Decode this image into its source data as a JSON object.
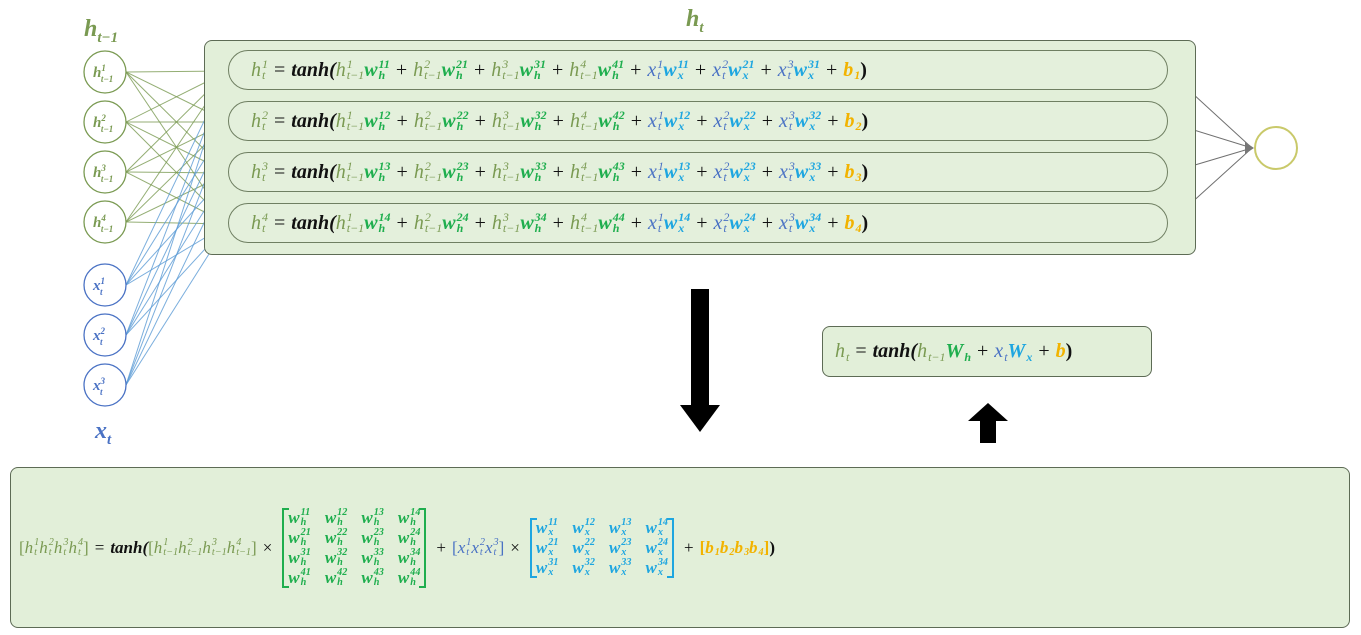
{
  "labels": {
    "h_prev": {
      "base": "h",
      "sub": "t−1"
    },
    "h_t": {
      "base": "h",
      "sub": "t"
    },
    "x_t": {
      "base": "x",
      "sub": "t"
    }
  },
  "colors": {
    "h": "#7a9a52",
    "w_h": "#1fae4e",
    "x": "#4a72c4",
    "w_x": "#1ea6e0",
    "b": "#f2b300",
    "box_fill": "#e2efd9",
    "output_node": "#c9c96a"
  },
  "nodes": {
    "h_prev": [
      [
        "h",
        "1",
        "t−1"
      ],
      [
        "h",
        "2",
        "t−1"
      ],
      [
        "h",
        "3",
        "t−1"
      ],
      [
        "h",
        "4",
        "t−1"
      ]
    ],
    "x": [
      [
        "x",
        "1",
        "t"
      ],
      [
        "x",
        "2",
        "t"
      ],
      [
        "x",
        "3",
        "t"
      ]
    ]
  },
  "rows": [
    [
      [
        "h",
        "1",
        "t",
        "h"
      ],
      [
        "="
      ],
      [
        "tanh(",
        "",
        "",
        "fn"
      ],
      [
        "h",
        "1",
        "t−1",
        "h"
      ],
      [
        "w",
        "11",
        "h",
        "wh"
      ],
      [
        "+"
      ],
      [
        "h",
        "2",
        "t−1",
        "h"
      ],
      [
        "w",
        "21",
        "h",
        "wh"
      ],
      [
        "+"
      ],
      [
        "h",
        "3",
        "t−1",
        "h"
      ],
      [
        "w",
        "31",
        "h",
        "wh"
      ],
      [
        "+"
      ],
      [
        "h",
        "4",
        "t−1",
        "h"
      ],
      [
        "w",
        "41",
        "h",
        "wh"
      ],
      [
        "+"
      ],
      [
        "x",
        "1",
        "t",
        "x"
      ],
      [
        "w",
        "11",
        "x",
        "wx"
      ],
      [
        "+"
      ],
      [
        "x",
        "2",
        "t",
        "x"
      ],
      [
        "w",
        "21",
        "x",
        "wx"
      ],
      [
        "+"
      ],
      [
        "x",
        "3",
        "t",
        "x"
      ],
      [
        "w",
        "31",
        "x",
        "wx"
      ],
      [
        "+"
      ],
      [
        "b",
        "",
        "1",
        "b"
      ],
      [
        ")",
        "",
        "",
        "fn"
      ]
    ],
    [
      [
        "h",
        "2",
        "t",
        "h"
      ],
      [
        "="
      ],
      [
        "tanh(",
        "",
        "",
        "fn"
      ],
      [
        "h",
        "1",
        "t−1",
        "h"
      ],
      [
        "w",
        "12",
        "h",
        "wh"
      ],
      [
        "+"
      ],
      [
        "h",
        "2",
        "t−1",
        "h"
      ],
      [
        "w",
        "22",
        "h",
        "wh"
      ],
      [
        "+"
      ],
      [
        "h",
        "3",
        "t−1",
        "h"
      ],
      [
        "w",
        "32",
        "h",
        "wh"
      ],
      [
        "+"
      ],
      [
        "h",
        "4",
        "t−1",
        "h"
      ],
      [
        "w",
        "42",
        "h",
        "wh"
      ],
      [
        "+"
      ],
      [
        "x",
        "1",
        "t",
        "x"
      ],
      [
        "w",
        "12",
        "x",
        "wx"
      ],
      [
        "+"
      ],
      [
        "x",
        "2",
        "t",
        "x"
      ],
      [
        "w",
        "22",
        "x",
        "wx"
      ],
      [
        "+"
      ],
      [
        "x",
        "3",
        "t",
        "x"
      ],
      [
        "w",
        "32",
        "x",
        "wx"
      ],
      [
        "+"
      ],
      [
        "b",
        "",
        "2",
        "b"
      ],
      [
        ")",
        "",
        "",
        "fn"
      ]
    ],
    [
      [
        "h",
        "3",
        "t",
        "h"
      ],
      [
        "="
      ],
      [
        "tanh(",
        "",
        "",
        "fn"
      ],
      [
        "h",
        "1",
        "t−1",
        "h"
      ],
      [
        "w",
        "13",
        "h",
        "wh"
      ],
      [
        "+"
      ],
      [
        "h",
        "2",
        "t−1",
        "h"
      ],
      [
        "w",
        "23",
        "h",
        "wh"
      ],
      [
        "+"
      ],
      [
        "h",
        "3",
        "t−1",
        "h"
      ],
      [
        "w",
        "33",
        "h",
        "wh"
      ],
      [
        "+"
      ],
      [
        "h",
        "4",
        "t−1",
        "h"
      ],
      [
        "w",
        "43",
        "h",
        "wh"
      ],
      [
        "+"
      ],
      [
        "x",
        "1",
        "t",
        "x"
      ],
      [
        "w",
        "13",
        "x",
        "wx"
      ],
      [
        "+"
      ],
      [
        "x",
        "2",
        "t",
        "x"
      ],
      [
        "w",
        "23",
        "x",
        "wx"
      ],
      [
        "+"
      ],
      [
        "x",
        "3",
        "t",
        "x"
      ],
      [
        "w",
        "33",
        "x",
        "wx"
      ],
      [
        "+"
      ],
      [
        "b",
        "",
        "3",
        "b"
      ],
      [
        ")",
        "",
        "",
        "fn"
      ]
    ],
    [
      [
        "h",
        "4",
        "t",
        "h"
      ],
      [
        "="
      ],
      [
        "tanh(",
        "",
        "",
        "fn"
      ],
      [
        "h",
        "1",
        "t−1",
        "h"
      ],
      [
        "w",
        "14",
        "h",
        "wh"
      ],
      [
        "+"
      ],
      [
        "h",
        "2",
        "t−1",
        "h"
      ],
      [
        "w",
        "24",
        "h",
        "wh"
      ],
      [
        "+"
      ],
      [
        "h",
        "3",
        "t−1",
        "h"
      ],
      [
        "w",
        "34",
        "h",
        "wh"
      ],
      [
        "+"
      ],
      [
        "h",
        "4",
        "t−1",
        "h"
      ],
      [
        "w",
        "44",
        "h",
        "wh"
      ],
      [
        "+"
      ],
      [
        "x",
        "1",
        "t",
        "x"
      ],
      [
        "w",
        "14",
        "x",
        "wx"
      ],
      [
        "+"
      ],
      [
        "x",
        "2",
        "t",
        "x"
      ],
      [
        "w",
        "24",
        "x",
        "wx"
      ],
      [
        "+"
      ],
      [
        "x",
        "3",
        "t",
        "x"
      ],
      [
        "w",
        "34",
        "x",
        "wx"
      ],
      [
        "+"
      ],
      [
        "b",
        "",
        "4",
        "b"
      ],
      [
        ")",
        "",
        "",
        "fn"
      ]
    ]
  ],
  "compact": [
    [
      "h",
      "",
      "t",
      "h"
    ],
    [
      "="
    ],
    [
      "tanh(",
      "",
      "",
      "fn"
    ],
    [
      "h",
      "",
      "t−1",
      "h"
    ],
    [
      "W",
      "",
      "h",
      "wh"
    ],
    [
      "+"
    ],
    [
      "x",
      "",
      "t",
      "x"
    ],
    [
      "W",
      "",
      "x",
      "wx"
    ],
    [
      "+"
    ],
    [
      "b",
      "",
      "",
      "b"
    ],
    [
      ")",
      "",
      "",
      "fn"
    ]
  ],
  "matrix_form": [
    [
      "[",
      "",
      "",
      "h"
    ],
    [
      "h",
      "1",
      "t",
      "h"
    ],
    [
      "h",
      "2",
      "t",
      "h"
    ],
    [
      "h",
      "3",
      "t",
      "h"
    ],
    [
      "h",
      "4",
      "t",
      "h"
    ],
    [
      "]",
      "",
      "",
      "h"
    ],
    [
      "="
    ],
    [
      "tanh(",
      "",
      "",
      "fn"
    ],
    [
      "[",
      "",
      "",
      "h"
    ],
    [
      "h",
      "1",
      "t−1",
      "h"
    ],
    [
      "h",
      "2",
      "t−1",
      "h"
    ],
    [
      "h",
      "3",
      "t−1",
      "h"
    ],
    [
      "h",
      "4",
      "t−1",
      "h"
    ],
    [
      "]",
      "",
      "",
      "h"
    ],
    [
      "×"
    ],
    {
      "matrix": "wh",
      "base": "w",
      "sub": "h",
      "cells": [
        [
          "11",
          "12",
          "13",
          "14"
        ],
        [
          "21",
          "22",
          "23",
          "24"
        ],
        [
          "31",
          "32",
          "33",
          "34"
        ],
        [
          "41",
          "42",
          "43",
          "44"
        ]
      ]
    },
    [
      "+"
    ],
    [
      "[",
      "",
      "",
      "x"
    ],
    [
      "x",
      "1",
      "t",
      "x"
    ],
    [
      "x",
      "2",
      "t",
      "x"
    ],
    [
      "x",
      "3",
      "t",
      "x"
    ],
    [
      "]",
      "",
      "",
      "x"
    ],
    [
      "×"
    ],
    {
      "matrix": "wx",
      "base": "w",
      "sub": "x",
      "cells": [
        [
          "11",
          "12",
          "13",
          "14"
        ],
        [
          "21",
          "22",
          "23",
          "24"
        ],
        [
          "31",
          "32",
          "33",
          "34"
        ]
      ]
    },
    [
      "+"
    ],
    [
      "[",
      "",
      "",
      "b"
    ],
    [
      "b",
      "",
      "1",
      "b"
    ],
    [
      "b",
      "",
      "2",
      "b"
    ],
    [
      "b",
      "",
      "3",
      "b"
    ],
    [
      "b",
      "",
      "4",
      "b"
    ],
    [
      "]",
      "",
      "",
      "b"
    ],
    [
      ")",
      "",
      "",
      "fn"
    ]
  ]
}
